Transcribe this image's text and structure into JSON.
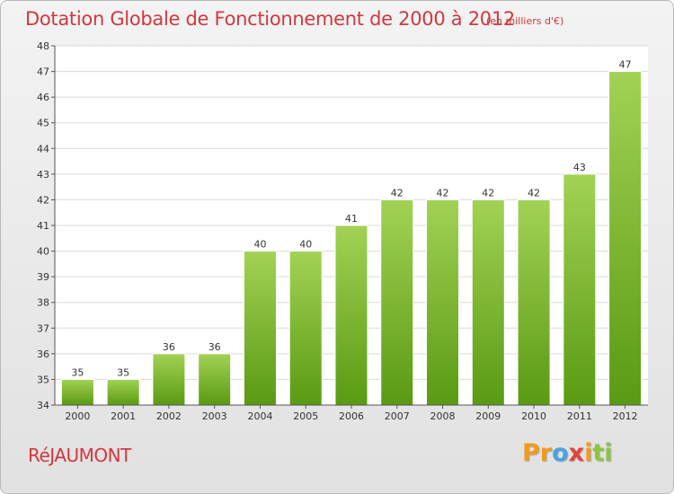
{
  "title": "Dotation Globale de Fonctionnement de 2000 à 2012",
  "unit_label": "(en milliers d'€)",
  "commune": "RéJAUMONT",
  "brand": {
    "letters": [
      "Pr",
      "o",
      "x",
      "i",
      "ti"
    ]
  },
  "colors": {
    "bar_top": "#a2d255",
    "bar_bottom": "#5a9a12",
    "title": "#d2383e"
  },
  "chart_data": {
    "type": "bar",
    "title": "Dotation Globale de Fonctionnement de 2000 à 2012",
    "categories": [
      "2000",
      "2001",
      "2002",
      "2003",
      "2004",
      "2005",
      "2006",
      "2007",
      "2008",
      "2009",
      "2010",
      "2011",
      "2012"
    ],
    "values": [
      35,
      35,
      36,
      36,
      40,
      40,
      41,
      42,
      42,
      42,
      42,
      43,
      47
    ],
    "ylim": [
      34,
      48
    ],
    "yticks": [
      34,
      35,
      36,
      37,
      38,
      39,
      40,
      41,
      42,
      43,
      44,
      45,
      46,
      47,
      48
    ],
    "grid": true,
    "legend": "none"
  }
}
